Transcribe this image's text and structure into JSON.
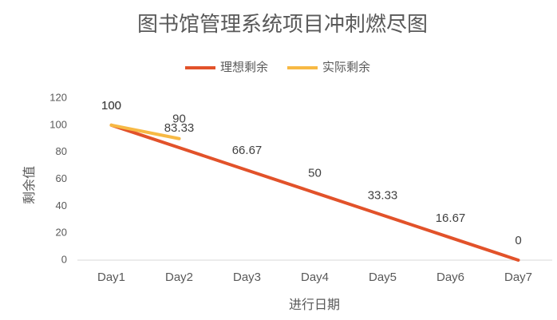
{
  "chart_data": {
    "type": "line",
    "title": "图书馆管理系统项目冲刺燃尽图",
    "x_label": "进行日期",
    "y_label": "剩余值",
    "categories": [
      "Day1",
      "Day2",
      "Day3",
      "Day4",
      "Day5",
      "Day6",
      "Day7"
    ],
    "series": [
      {
        "name": "理想剩余",
        "color": "#e2522a",
        "values": [
          100,
          83.33,
          66.67,
          50,
          33.33,
          16.67,
          0
        ]
      },
      {
        "name": "实际剩余",
        "color": "#f7b944",
        "values": [
          100,
          90,
          null,
          null,
          null,
          null,
          null
        ]
      }
    ],
    "ylim": [
      0,
      120
    ],
    "yticks": [
      0,
      20,
      40,
      60,
      80,
      100,
      120
    ],
    "grid": false,
    "legend": "top"
  }
}
